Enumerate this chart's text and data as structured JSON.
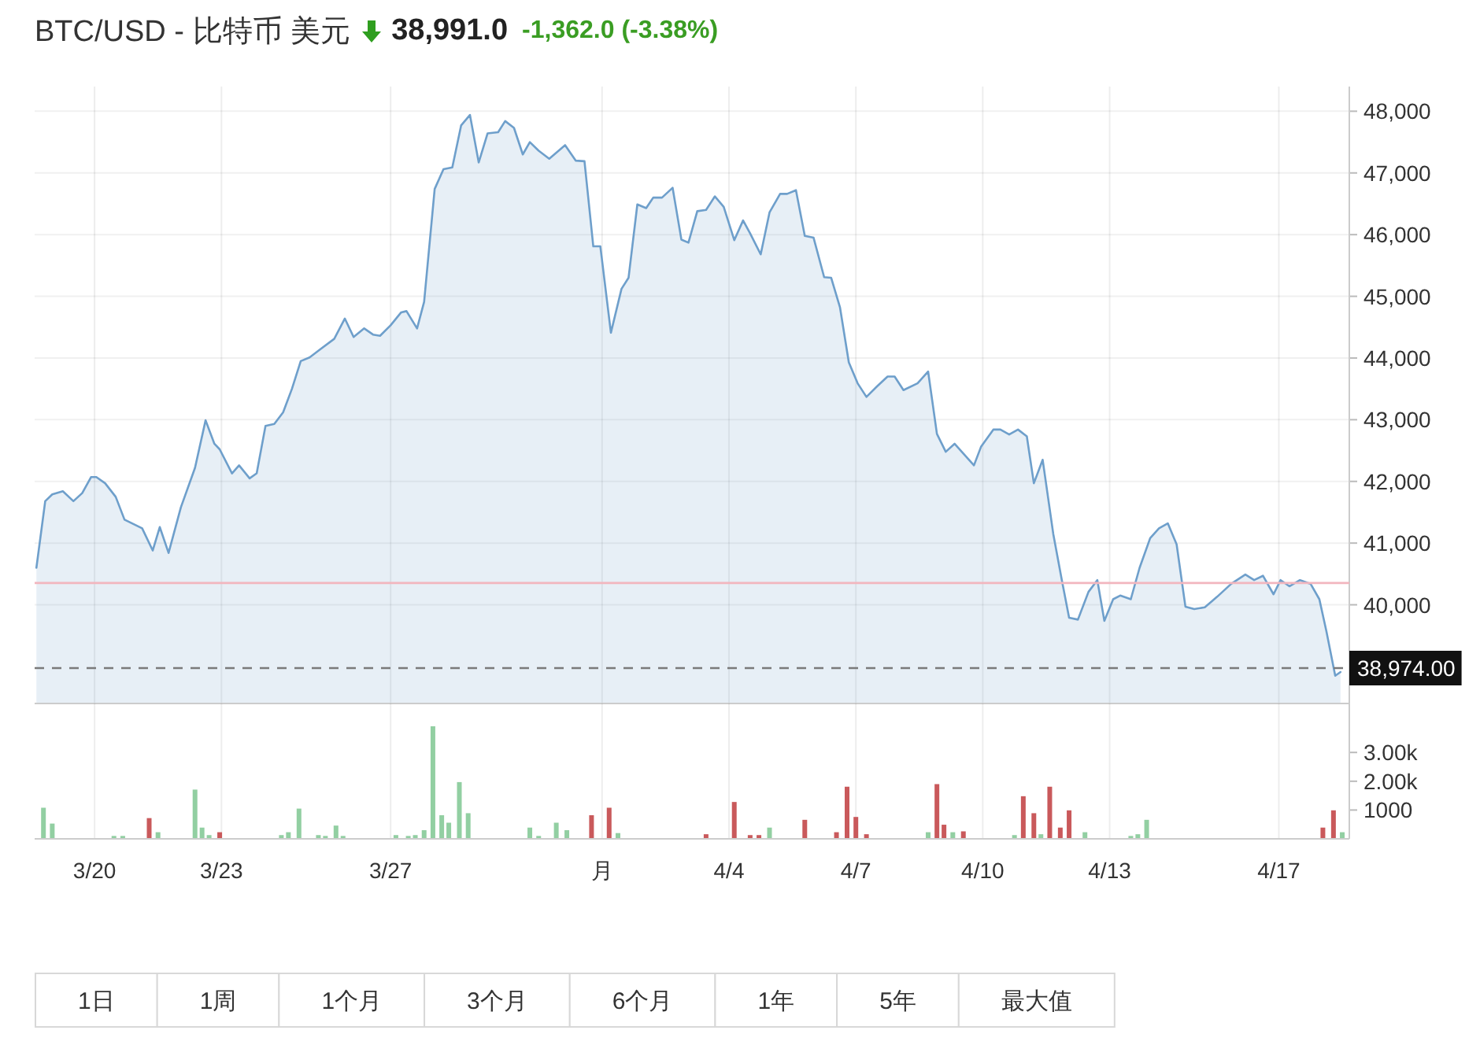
{
  "chart_data": [
    {
      "type": "area",
      "title": "BTC/USD - 比特币 美元",
      "subtitle": "38,991.0",
      "annotations": [
        "-1,362.0 (-3.38%)"
      ],
      "color": "#6e9fcb",
      "x": [
        "--03-18T15:00",
        "--03-18T20:00",
        "--03-19T00:00",
        "--03-19T06:00",
        "--03-19T12:00",
        "--03-19T17:00",
        "--03-19T22:00",
        "--03-20T01:00",
        "--03-20T06:00",
        "--03-20T12:00",
        "--03-20T17:00",
        "--03-20T22:00",
        "--03-21T03:00",
        "--03-21T09:00",
        "--03-21T13:00",
        "--03-21T18:00",
        "--03-22T01:00",
        "--03-22T09:00",
        "--03-22T15:00",
        "--03-22T20:00",
        "--03-22T23:00",
        "--03-23T06:00",
        "--03-23T10:00",
        "--03-23T16:00",
        "--03-23T20:00",
        "--03-24T01:00",
        "--03-24T06:00",
        "--03-24T11:00",
        "--03-24T16:00",
        "--03-24T21:00",
        "--03-25T02:00",
        "--03-25T08:00",
        "--03-25T16:00",
        "--03-25T22:00",
        "--03-26T03:00",
        "--03-26T09:00",
        "--03-26T14:00",
        "--03-26T18:00",
        "--03-27T00:00",
        "--03-27T06:00",
        "--03-27T09:00",
        "--03-27T15:00",
        "--03-27T19:00",
        "--03-28T01:00",
        "--03-28T06:00",
        "--03-28T11:00",
        "--03-28T16:00",
        "--03-28T21:00",
        "--03-29T02:00",
        "--03-29T07:00",
        "--03-29T13:00",
        "--03-29T17:00",
        "--03-29T22:00",
        "--03-30T03:00",
        "--03-30T07:00",
        "--03-30T12:00",
        "--03-30T18:00",
        "--03-31T03:00",
        "--03-31T09:00",
        "--03-31T14:00",
        "--03-31T19:00",
        "--03-31T23:00",
        "--04-01T05:00",
        "--04-01T11:00",
        "--04-01T15:00",
        "--04-01T20:00",
        "--04-02T01:00",
        "--04-02T05:00",
        "--04-02T10:00",
        "--04-02T16:00",
        "--04-02T21:00",
        "--04-03T01:00",
        "--04-03T06:00",
        "--04-03T11:00",
        "--04-03T16:00",
        "--04-03T21:00",
        "--04-04T03:00",
        "--04-04T08:00",
        "--04-04T12:00",
        "--04-04T18:00",
        "--04-04T23:00",
        "--04-05T05:00",
        "--04-05T09:00",
        "--04-05T14:00",
        "--04-05T19:00",
        "--04-06T00:00",
        "--04-06T06:00",
        "--04-06T10:00",
        "--04-06T15:00",
        "--04-06T20:00",
        "--04-07T01:00",
        "--04-07T06:00",
        "--04-07T12:00",
        "--04-07T18:00",
        "--04-07T22:00",
        "--04-08T03:00",
        "--04-08T11:00",
        "--04-08T17:00",
        "--04-08T22:00",
        "--04-09T03:00",
        "--04-09T08:00",
        "--04-09T13:00",
        "--04-09T19:00",
        "--04-09T23:00",
        "--04-10T06:00",
        "--04-10T10:00",
        "--04-10T15:00",
        "--04-10T20:00",
        "--04-11T01:00",
        "--04-11T05:00",
        "--04-11T10:00",
        "--04-11T16:00",
        "--04-11T21:00",
        "--04-12T01:00",
        "--04-12T06:00",
        "--04-12T12:00",
        "--04-12T17:00",
        "--04-12T21:00",
        "--04-13T02:00",
        "--04-13T06:00",
        "--04-13T12:00",
        "--04-13T17:00",
        "--04-13T23:00",
        "--04-14T04:00",
        "--04-14T09:00",
        "--04-14T14:00",
        "--04-14T19:00",
        "--04-15T00:00",
        "--04-15T06:00",
        "--04-15T13:00",
        "--04-15T21:00",
        "--04-16T05:00",
        "--04-16T10:00",
        "--04-16T15:00",
        "--04-16T21:00",
        "--04-17T01:00",
        "--04-17T06:00",
        "--04-17T12:00",
        "--04-17T18:00",
        "--04-17T23:00",
        "--04-18T03:00",
        "--04-18T08:00",
        "--04-18T11:00"
      ],
      "values": [
        40600,
        41680,
        41790,
        41840,
        41680,
        41810,
        42070,
        42070,
        41970,
        41750,
        41380,
        41310,
        41240,
        40880,
        41260,
        40840,
        41580,
        42220,
        42990,
        42610,
        42520,
        42130,
        42260,
        42050,
        42130,
        42900,
        42930,
        43120,
        43500,
        43950,
        44010,
        44140,
        44310,
        44640,
        44340,
        44480,
        44380,
        44360,
        44530,
        44740,
        44760,
        44480,
        44910,
        46740,
        47060,
        47090,
        47770,
        47940,
        47170,
        47640,
        47660,
        47840,
        47730,
        47300,
        47500,
        47360,
        47230,
        47450,
        47200,
        47190,
        45810,
        45810,
        44410,
        45120,
        45300,
        46490,
        46430,
        46600,
        46600,
        46760,
        45920,
        45870,
        46380,
        46400,
        46620,
        46450,
        45910,
        46230,
        46020,
        45680,
        46360,
        46660,
        46660,
        46720,
        45980,
        45950,
        45310,
        45300,
        44820,
        43930,
        43590,
        43370,
        43540,
        43700,
        43700,
        43480,
        43590,
        43780,
        42770,
        42480,
        42610,
        42450,
        42260,
        42560,
        42840,
        42840,
        42760,
        42840,
        42730,
        41970,
        42350,
        41150,
        40380,
        39790,
        39760,
        40210,
        40400,
        39740,
        40090,
        40150,
        40090,
        40600,
        41080,
        41240,
        41320,
        40980,
        39970,
        39930,
        39960,
        40130,
        40340,
        40490,
        40400,
        40470,
        40170,
        40400,
        40300,
        40400,
        40340,
        40090,
        39570,
        38850,
        38910
      ],
      "xlim": [
        "--03-18T14:00",
        "--04-18T16:00"
      ],
      "xticks": [
        "--03-20",
        "--03-23",
        "--03-27",
        "--04-01",
        "--04-04",
        "--04-07",
        "--04-10",
        "--04-13",
        "--04-17"
      ],
      "ylim": [
        38400,
        48400
      ],
      "yticks": [
        {
          "value": 40000,
          "label": "40,000"
        },
        {
          "value": 41000,
          "label": "41,000"
        },
        {
          "value": 42000,
          "label": "42,000"
        },
        {
          "value": 43000,
          "label": "43,000"
        },
        {
          "value": 44000,
          "label": "44,000"
        },
        {
          "value": 45000,
          "label": "45,000"
        },
        {
          "value": 46000,
          "label": "46,000"
        },
        {
          "value": 47000,
          "label": "47,000"
        },
        {
          "value": 48000,
          "label": "48,000"
        }
      ],
      "ref_lines": [
        {
          "axis": "y",
          "value": 40353,
          "color": "#f2b6be"
        },
        {
          "axis": "y",
          "value": 38974,
          "label": "38,974.00",
          "color": "#7a7a7a",
          "line_style": "dashed"
        }
      ],
      "grid": true,
      "tick_labels": "y"
    },
    {
      "type": "bar",
      "x": [
        "--03-18T19:00",
        "--03-19T00:00",
        "--03-20T11:00",
        "--03-20T16:00",
        "--03-21T07:00",
        "--03-21T12:00",
        "--03-22T09:00",
        "--03-22T13:00",
        "--03-22T17:00",
        "--03-22T23:00",
        "--03-24T10:00",
        "--03-24T14:00",
        "--03-24T20:00",
        "--03-25T07:00",
        "--03-25T11:00",
        "--03-25T17:00",
        "--03-25T21:00",
        "--03-27T03:00",
        "--03-27T10:00",
        "--03-27T14:00",
        "--03-27T19:00",
        "--03-28T00:00",
        "--03-28T05:00",
        "--03-28T09:00",
        "--03-28T15:00",
        "--03-28T20:00",
        "--03-30T07:00",
        "--03-30T12:00",
        "--03-30T22:00",
        "--03-31T04:00",
        "--03-31T18:00",
        "--04-01T04:00",
        "--04-01T09:00",
        "--04-03T11:00",
        "--04-04T03:00",
        "--04-04T12:00",
        "--04-04T17:00",
        "--04-04T23:00",
        "--04-05T19:00",
        "--04-06T13:00",
        "--04-06T19:00",
        "--04-07T00:00",
        "--04-07T06:00",
        "--04-08T17:00",
        "--04-08T22:00",
        "--04-09T02:00",
        "--04-09T07:00",
        "--04-09T13:00",
        "--04-10T18:00",
        "--04-10T23:00",
        "--04-11T05:00",
        "--04-11T09:00",
        "--04-11T14:00",
        "--04-11T20:00",
        "--04-12T01:00",
        "--04-12T10:00",
        "--04-13T12:00",
        "--04-13T16:00",
        "--04-13T21:00",
        "--04-18T01:00",
        "--04-18T07:00",
        "--04-18T12:00"
      ],
      "values": [
        1080,
        530,
        100,
        100,
        720,
        230,
        1710,
        390,
        130,
        230,
        130,
        230,
        1050,
        130,
        100,
        460,
        100,
        130,
        100,
        130,
        300,
        3910,
        820,
        560,
        1970,
        890,
        390,
        100,
        560,
        300,
        820,
        1080,
        200,
        160,
        1280,
        130,
        130,
        390,
        660,
        230,
        1810,
        760,
        160,
        230,
        1900,
        490,
        230,
        260,
        130,
        1480,
        890,
        160,
        1810,
        390,
        990,
        230,
        100,
        160,
        660,
        390,
        990,
        230
      ],
      "colors": [
        "#92cfa2",
        "#92cfa2",
        "#92cfa2",
        "#92cfa2",
        "#c9595b",
        "#92cfa2",
        "#92cfa2",
        "#92cfa2",
        "#92cfa2",
        "#c9595b",
        "#92cfa2",
        "#92cfa2",
        "#92cfa2",
        "#92cfa2",
        "#92cfa2",
        "#92cfa2",
        "#92cfa2",
        "#92cfa2",
        "#92cfa2",
        "#92cfa2",
        "#92cfa2",
        "#92cfa2",
        "#92cfa2",
        "#92cfa2",
        "#92cfa2",
        "#92cfa2",
        "#92cfa2",
        "#92cfa2",
        "#92cfa2",
        "#92cfa2",
        "#c9595b",
        "#c9595b",
        "#92cfa2",
        "#c9595b",
        "#c9595b",
        "#c9595b",
        "#c9595b",
        "#92cfa2",
        "#c9595b",
        "#c9595b",
        "#c9595b",
        "#c9595b",
        "#c9595b",
        "#92cfa2",
        "#c9595b",
        "#c9595b",
        "#92cfa2",
        "#c9595b",
        "#92cfa2",
        "#c9595b",
        "#c9595b",
        "#92cfa2",
        "#c9595b",
        "#c9595b",
        "#c9595b",
        "#92cfa2",
        "#92cfa2",
        "#92cfa2",
        "#92cfa2",
        "#c9595b",
        "#c9595b",
        "#92cfa2"
      ],
      "xlim": [
        "--03-18T14:00",
        "--04-18T16:00"
      ],
      "xticks": [
        {
          "value": "--03-20",
          "label": "3/20"
        },
        {
          "value": "--03-23",
          "label": "3/23"
        },
        {
          "value": "--03-27",
          "label": "3/27"
        },
        {
          "value": "--04-01",
          "label": "月"
        },
        {
          "value": "--04-04",
          "label": "4/4"
        },
        {
          "value": "--04-07",
          "label": "4/7"
        },
        {
          "value": "--04-10",
          "label": "4/10"
        },
        {
          "value": "--04-13",
          "label": "4/13"
        },
        {
          "value": "--04-17",
          "label": "4/17"
        }
      ],
      "ylim": [
        0,
        4700
      ],
      "yticks": [
        1000,
        {
          "value": 2000,
          "label": "2.00k"
        },
        {
          "value": 3000,
          "label": "3.00k"
        }
      ],
      "grid": "x"
    },
    {
      "type": "other",
      "annotations": [
        "1日",
        "1周",
        "1个月",
        "3个月",
        "6个月",
        "1年",
        "5年",
        "最大值"
      ]
    }
  ]
}
